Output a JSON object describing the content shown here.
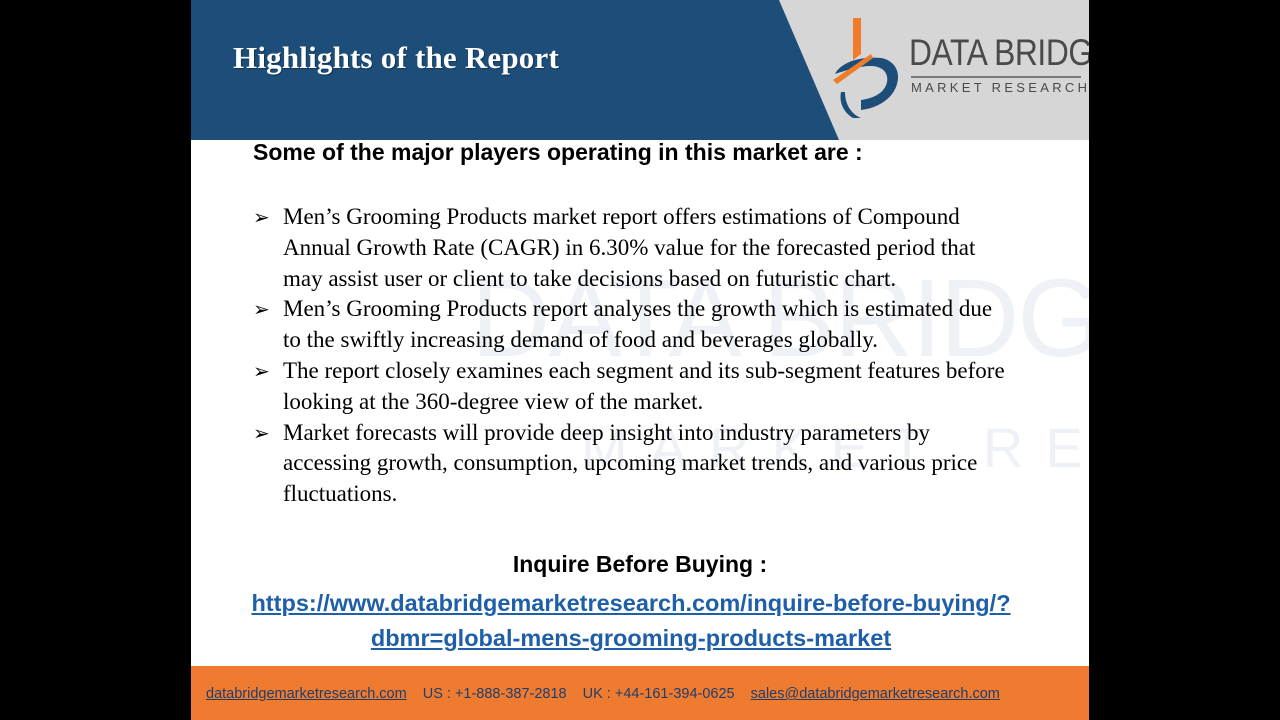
{
  "slide": {
    "title": "Highlights of the Report"
  },
  "logo": {
    "name": "DATA BRIDGE",
    "subtitle": "MARKET RESEARCH",
    "icon": "data-bridge-logo-icon"
  },
  "content": {
    "players_heading": "Some of the major players operating in this market are :",
    "bullets": [
      "Men’s Grooming Products market report offers estimations of Compound Annual Growth Rate (CAGR) in 6.30% value for the forecasted period that may assist user or client to take decisions based on futuristic chart.",
      "Men’s Grooming Products report analyses the growth which is estimated due to the swiftly increasing demand of food and beverages globally.",
      "The report closely examines each segment and its sub-segment features before looking at the 360-degree view of the market.",
      "Market forecasts will provide deep insight into industry parameters by accessing growth, consumption, upcoming market trends, and various price fluctuations."
    ],
    "bullet_icon": "arrow-bullet-icon",
    "inquire_label": "Inquire Before Buying :",
    "inquire_url": "https://www.databridgemarketresearch.com/inquire-before-buying/?dbmr=global-mens-grooming-products-market"
  },
  "footer": {
    "website": "databridgemarketresearch.com",
    "us_phone": "US : +1-888-387-2818",
    "uk_phone": "UK : +44-161-394-0625",
    "email": "sales@databridgemarketresearch.com"
  },
  "colors": {
    "header_blue": "#1d4e79",
    "footer_orange": "#ef7b30",
    "link_blue": "#1f5fa8",
    "logo_orange": "#f07c2a"
  }
}
